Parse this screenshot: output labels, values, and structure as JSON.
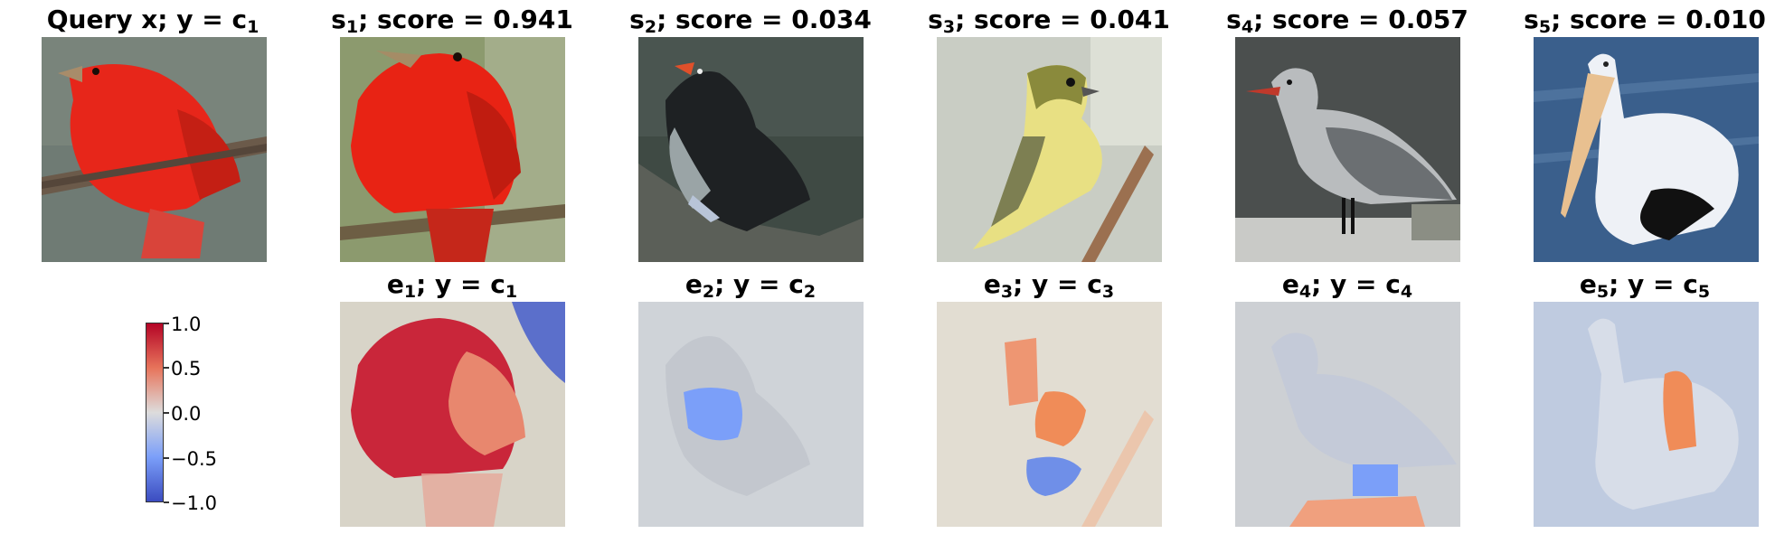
{
  "top_titles": [
    {
      "pre": "Query x; y = c",
      "sub": "1",
      "post": ""
    },
    {
      "pre": "s",
      "sub": "1",
      "post": "; score = 0.941"
    },
    {
      "pre": "s",
      "sub": "2",
      "post": "; score = 0.034"
    },
    {
      "pre": "s",
      "sub": "3",
      "post": "; score = 0.041"
    },
    {
      "pre": "s",
      "sub": "4",
      "post": "; score = 0.057"
    },
    {
      "pre": "s",
      "sub": "5",
      "post": "; score = 0.010"
    }
  ],
  "bottom_titles": [
    {
      "pre": "e",
      "sub": "1",
      "mid": "; y = c",
      "sub2": "1"
    },
    {
      "pre": "e",
      "sub": "2",
      "mid": "; y = c",
      "sub2": "2"
    },
    {
      "pre": "e",
      "sub": "3",
      "mid": "; y = c",
      "sub2": "3"
    },
    {
      "pre": "e",
      "sub": "4",
      "mid": "; y = c",
      "sub2": "4"
    },
    {
      "pre": "e",
      "sub": "5",
      "mid": "; y = c",
      "sub2": "5"
    }
  ],
  "colorbar": {
    "ticks": [
      "1.0",
      "0.5",
      "0.0",
      "−0.5",
      "−1.0"
    ],
    "colors": [
      "#b40426",
      "#e7745b",
      "#dddcdc",
      "#7b9ff9",
      "#3b4cc0"
    ]
  }
}
